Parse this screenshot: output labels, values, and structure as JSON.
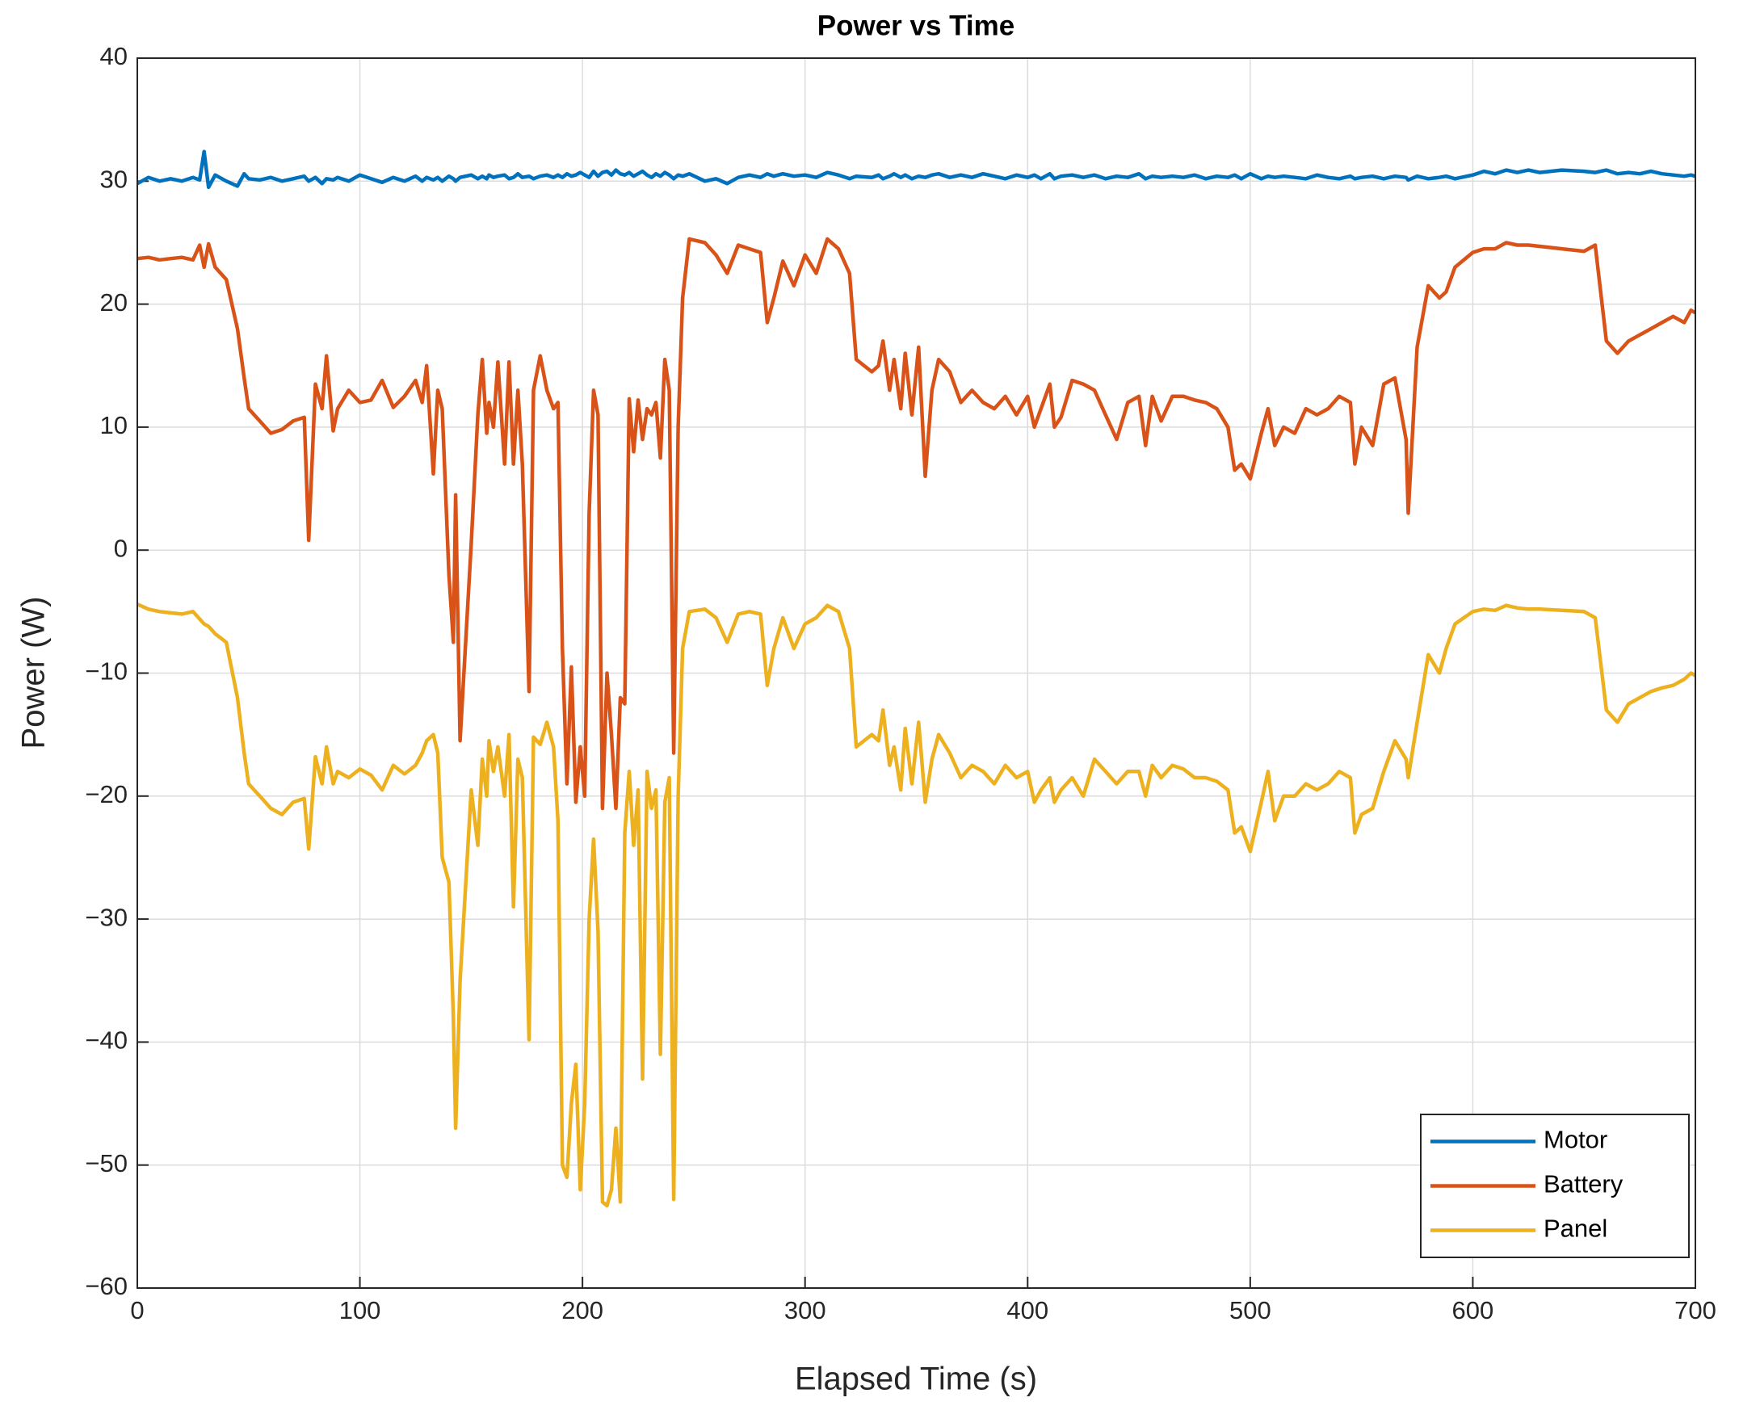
{
  "chart_data": {
    "type": "line",
    "title": "Power vs Time",
    "x_label": "Elapsed Time (s)",
    "y_label": "Power (W)",
    "x": [
      0,
      5,
      10,
      15,
      20,
      25,
      28,
      30,
      32,
      35,
      40,
      45,
      48,
      50,
      55,
      60,
      65,
      70,
      75,
      77,
      80,
      83,
      85,
      88,
      90,
      95,
      100,
      105,
      110,
      115,
      120,
      125,
      128,
      130,
      133,
      135,
      137,
      140,
      142,
      143,
      145,
      150,
      153,
      155,
      157,
      158,
      160,
      162,
      165,
      167,
      169,
      171,
      173,
      176,
      178,
      181,
      184,
      187,
      189,
      191,
      193,
      195,
      197,
      199,
      201,
      203,
      205,
      207,
      209,
      211,
      213,
      215,
      217,
      219,
      221,
      223,
      225,
      227,
      229,
      231,
      233,
      235,
      237,
      239,
      241,
      243,
      245,
      248,
      255,
      260,
      265,
      270,
      275,
      280,
      283,
      286,
      290,
      295,
      300,
      305,
      310,
      315,
      320,
      323,
      330,
      333,
      335,
      338,
      340,
      343,
      345,
      348,
      351,
      354,
      357,
      360,
      365,
      370,
      375,
      380,
      385,
      390,
      395,
      400,
      403,
      406,
      410,
      412,
      415,
      420,
      425,
      430,
      435,
      440,
      445,
      450,
      453,
      456,
      460,
      465,
      470,
      475,
      480,
      485,
      490,
      493,
      496,
      500,
      505,
      508,
      511,
      515,
      520,
      525,
      530,
      535,
      540,
      545,
      547,
      550,
      555,
      560,
      565,
      570,
      571,
      575,
      580,
      585,
      588,
      592,
      600,
      605,
      610,
      615,
      620,
      625,
      630,
      640,
      650,
      655,
      660,
      665,
      670,
      675,
      680,
      685,
      690,
      695,
      698,
      700
    ],
    "series": [
      {
        "name": "Motor",
        "color": "#0072BD",
        "values": [
          29.8,
          30.3,
          30.0,
          30.2,
          30.0,
          30.3,
          30.1,
          32.4,
          29.5,
          30.5,
          30.0,
          29.6,
          30.6,
          30.2,
          30.1,
          30.3,
          30.0,
          30.2,
          30.4,
          30.0,
          30.3,
          29.8,
          30.2,
          30.1,
          30.3,
          30.0,
          30.5,
          30.2,
          29.9,
          30.3,
          30.0,
          30.4,
          30.0,
          30.3,
          30.1,
          30.3,
          30.0,
          30.4,
          30.2,
          30.0,
          30.3,
          30.5,
          30.2,
          30.4,
          30.2,
          30.5,
          30.3,
          30.4,
          30.5,
          30.2,
          30.3,
          30.6,
          30.3,
          30.4,
          30.2,
          30.4,
          30.5,
          30.3,
          30.5,
          30.3,
          30.6,
          30.4,
          30.5,
          30.7,
          30.5,
          30.3,
          30.8,
          30.4,
          30.7,
          30.8,
          30.5,
          30.9,
          30.6,
          30.5,
          30.7,
          30.4,
          30.6,
          30.8,
          30.5,
          30.3,
          30.6,
          30.4,
          30.7,
          30.5,
          30.2,
          30.5,
          30.4,
          30.6,
          30.0,
          30.2,
          29.8,
          30.3,
          30.5,
          30.3,
          30.6,
          30.4,
          30.6,
          30.4,
          30.5,
          30.3,
          30.7,
          30.5,
          30.2,
          30.4,
          30.3,
          30.5,
          30.2,
          30.4,
          30.6,
          30.3,
          30.5,
          30.2,
          30.4,
          30.3,
          30.5,
          30.6,
          30.3,
          30.5,
          30.3,
          30.6,
          30.4,
          30.2,
          30.5,
          30.3,
          30.5,
          30.2,
          30.6,
          30.2,
          30.4,
          30.5,
          30.3,
          30.5,
          30.2,
          30.4,
          30.3,
          30.6,
          30.2,
          30.4,
          30.3,
          30.4,
          30.3,
          30.5,
          30.2,
          30.4,
          30.3,
          30.5,
          30.2,
          30.6,
          30.2,
          30.4,
          30.3,
          30.4,
          30.3,
          30.2,
          30.5,
          30.3,
          30.2,
          30.4,
          30.2,
          30.3,
          30.4,
          30.2,
          30.4,
          30.3,
          30.1,
          30.4,
          30.2,
          30.3,
          30.4,
          30.2,
          30.5,
          30.8,
          30.6,
          30.9,
          30.7,
          30.9,
          30.7,
          30.9,
          30.8,
          30.7,
          30.9,
          30.6,
          30.7,
          30.6,
          30.8,
          30.6,
          30.5,
          30.4,
          30.5,
          30.4
        ]
      },
      {
        "name": "Battery",
        "color": "#D95319",
        "values": [
          23.7,
          23.8,
          23.6,
          23.7,
          23.8,
          23.6,
          24.8,
          23.0,
          24.9,
          23.0,
          22.0,
          18.0,
          14.0,
          11.5,
          10.5,
          9.5,
          9.8,
          10.5,
          10.8,
          0.8,
          13.5,
          11.5,
          15.8,
          9.7,
          11.5,
          13.0,
          12.0,
          12.2,
          13.8,
          11.6,
          12.5,
          13.8,
          12.0,
          15.0,
          6.2,
          13.0,
          11.5,
          -2.0,
          -7.5,
          4.5,
          -15.5,
          0.5,
          11.0,
          15.5,
          9.5,
          12.0,
          10.0,
          15.3,
          7.0,
          15.3,
          7.0,
          13.0,
          7.0,
          -11.5,
          13.0,
          15.8,
          13.0,
          11.5,
          12.0,
          -8.0,
          -19.0,
          -9.5,
          -20.5,
          -16.0,
          -20.0,
          3.0,
          13.0,
          11.0,
          -21.0,
          -10.0,
          -15.0,
          -21.0,
          -12.0,
          -12.5,
          12.3,
          8.0,
          12.2,
          9.0,
          11.5,
          11.0,
          12.0,
          7.5,
          15.5,
          13.0,
          -16.5,
          10.0,
          20.5,
          25.3,
          25.0,
          24.0,
          22.5,
          24.8,
          24.5,
          24.2,
          18.5,
          20.5,
          23.5,
          21.5,
          24.0,
          22.5,
          25.3,
          24.5,
          22.5,
          15.5,
          14.5,
          15.0,
          17.0,
          13.0,
          15.5,
          11.5,
          16.0,
          11.0,
          16.5,
          6.0,
          13.0,
          15.5,
          14.5,
          12.0,
          13.0,
          12.0,
          11.5,
          12.5,
          11.0,
          12.5,
          10.0,
          11.5,
          13.5,
          10.0,
          10.8,
          13.8,
          13.5,
          13.0,
          11.0,
          9.0,
          12.0,
          12.5,
          8.5,
          12.5,
          10.5,
          12.5,
          12.5,
          12.2,
          12.0,
          11.5,
          10.0,
          6.5,
          7.0,
          5.8,
          9.5,
          11.5,
          8.5,
          10.0,
          9.5,
          11.5,
          11.0,
          11.5,
          12.5,
          12.0,
          7.0,
          10.0,
          8.5,
          13.5,
          14.0,
          9.0,
          3.0,
          16.5,
          21.5,
          20.5,
          21.0,
          23.0,
          24.2,
          24.5,
          24.5,
          25.0,
          24.8,
          24.8,
          24.7,
          24.5,
          24.3,
          24.8,
          17.0,
          16.0,
          17.0,
          17.5,
          18.0,
          18.5,
          19.0,
          18.5,
          19.5,
          19.3
        ]
      },
      {
        "name": "Panel",
        "color": "#EDB120",
        "values": [
          -4.4,
          -4.8,
          -5.0,
          -5.1,
          -5.2,
          -5.0,
          -5.6,
          -6.0,
          -6.2,
          -6.8,
          -7.5,
          -12.0,
          -16.5,
          -19.0,
          -20.0,
          -21.0,
          -21.5,
          -20.5,
          -20.2,
          -24.3,
          -16.8,
          -19.0,
          -16.0,
          -19.0,
          -18.0,
          -18.5,
          -17.8,
          -18.3,
          -19.5,
          -17.5,
          -18.2,
          -17.5,
          -16.5,
          -15.5,
          -15.0,
          -16.5,
          -25.0,
          -27.0,
          -38.0,
          -47.0,
          -35.0,
          -19.5,
          -24.0,
          -17.0,
          -20.0,
          -15.5,
          -18.0,
          -16.0,
          -20.0,
          -15.0,
          -29.0,
          -17.0,
          -18.5,
          -39.8,
          -15.2,
          -15.8,
          -14.0,
          -16.0,
          -22.0,
          -50.0,
          -51.0,
          -45.0,
          -41.8,
          -52.0,
          -45.0,
          -30.0,
          -23.5,
          -31.0,
          -53.0,
          -53.3,
          -52.0,
          -47.0,
          -53.0,
          -23.0,
          -18.0,
          -24.0,
          -19.5,
          -43.0,
          -18.0,
          -21.0,
          -19.5,
          -41.0,
          -20.5,
          -18.5,
          -52.8,
          -20.0,
          -8.0,
          -5.0,
          -4.8,
          -5.5,
          -7.5,
          -5.2,
          -5.0,
          -5.2,
          -11.0,
          -8.0,
          -5.5,
          -8.0,
          -6.0,
          -5.5,
          -4.5,
          -5.0,
          -8.0,
          -16.0,
          -15.0,
          -15.5,
          -13.0,
          -17.5,
          -16.0,
          -19.5,
          -14.5,
          -19.0,
          -14.0,
          -20.5,
          -17.0,
          -15.0,
          -16.5,
          -18.5,
          -17.5,
          -18.0,
          -19.0,
          -17.5,
          -18.5,
          -18.0,
          -20.5,
          -19.5,
          -18.5,
          -20.5,
          -19.5,
          -18.5,
          -20.0,
          -17.0,
          -18.0,
          -19.0,
          -18.0,
          -18.0,
          -20.0,
          -17.5,
          -18.5,
          -17.5,
          -17.8,
          -18.5,
          -18.5,
          -18.8,
          -19.5,
          -23.0,
          -22.5,
          -24.5,
          -20.5,
          -18.0,
          -22.0,
          -20.0,
          -20.0,
          -19.0,
          -19.5,
          -19.0,
          -18.0,
          -18.5,
          -23.0,
          -21.5,
          -21.0,
          -18.0,
          -15.5,
          -17.0,
          -18.5,
          -14.0,
          -8.5,
          -10.0,
          -8.0,
          -6.0,
          -5.0,
          -4.8,
          -4.9,
          -4.5,
          -4.7,
          -4.8,
          -4.8,
          -4.9,
          -5.0,
          -5.5,
          -13.0,
          -14.0,
          -12.5,
          -12.0,
          -11.5,
          -11.2,
          -11.0,
          -10.5,
          -10.0,
          -10.2
        ]
      }
    ],
    "xlim": [
      0,
      700
    ],
    "xticks": [
      0,
      100,
      200,
      300,
      400,
      500,
      600,
      700
    ],
    "ylim": [
      -60,
      40
    ],
    "yticks": [
      {
        "value": -60,
        "label": "−60"
      },
      {
        "value": -50,
        "label": "−50"
      },
      {
        "value": -40,
        "label": "−40"
      },
      {
        "value": -30,
        "label": "−30"
      },
      {
        "value": -20,
        "label": "−20"
      },
      {
        "value": -10,
        "label": "−10"
      },
      0,
      10,
      20,
      30,
      40
    ],
    "grid": true,
    "legend": "bottom-right"
  }
}
